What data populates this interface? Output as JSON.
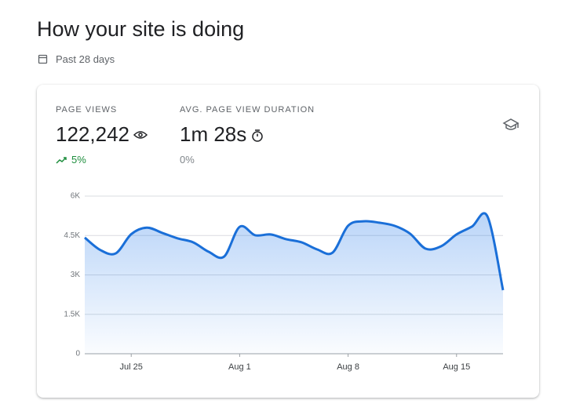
{
  "header": {
    "title": "How your site is doing",
    "period": "Past 28 days"
  },
  "metrics": [
    {
      "label": "PAGE VIEWS",
      "value": "122,242",
      "change": "5%"
    },
    {
      "label": "AVG. PAGE VIEW DURATION",
      "value": "1m 28s",
      "change": "0%"
    }
  ],
  "chart_data": {
    "type": "area",
    "x": [
      0,
      1,
      2,
      3,
      4,
      5,
      6,
      7,
      8,
      9,
      10,
      11,
      12,
      13,
      14,
      15,
      16,
      17,
      18,
      19,
      20,
      21,
      22,
      23,
      24,
      25,
      26,
      27
    ],
    "values": [
      4420,
      3950,
      3820,
      4550,
      4800,
      4600,
      4390,
      4240,
      3880,
      3700,
      4830,
      4510,
      4540,
      4360,
      4240,
      3970,
      3850,
      4870,
      5040,
      4990,
      4870,
      4570,
      4000,
      4090,
      4540,
      4840,
      5220,
      2420
    ],
    "color": "#1a6fd8",
    "xlim": [
      0,
      27
    ],
    "xticks": [
      {
        "value": 3,
        "label": "Jul 25"
      },
      {
        "value": 10,
        "label": "Aug 1"
      },
      {
        "value": 17,
        "label": "Aug 8"
      },
      {
        "value": 24,
        "label": "Aug 15"
      }
    ],
    "ylim": [
      0,
      6000
    ],
    "yticks": [
      {
        "value": 0,
        "label": "0"
      },
      {
        "value": 1500,
        "label": "1.5K"
      },
      {
        "value": 3000,
        "label": "3K"
      },
      {
        "value": 4500,
        "label": "4.5K"
      },
      {
        "value": 6000,
        "label": "6K"
      }
    ],
    "grid": true
  }
}
